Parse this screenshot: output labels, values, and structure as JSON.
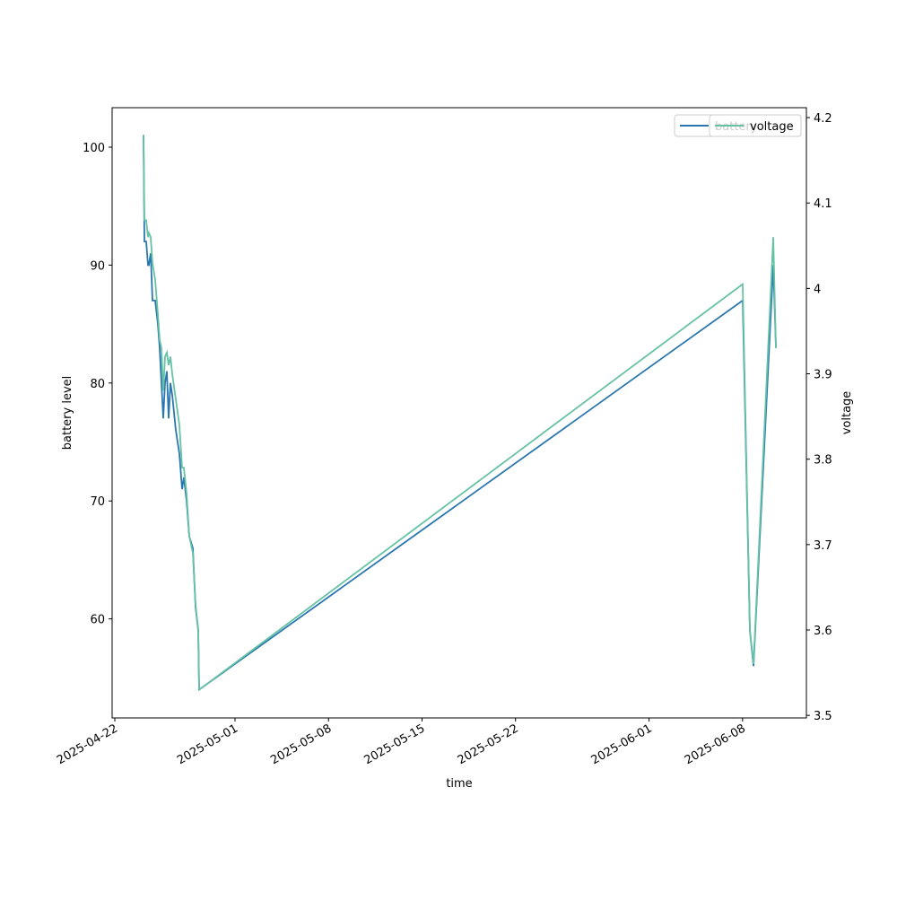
{
  "chart_data": {
    "type": "line",
    "xlabel": "time",
    "ylabel": "battery level",
    "y2label": "voltage",
    "x": [
      "2025-04-24T03:35",
      "2025-04-24T05:11",
      "2025-04-24T08:25",
      "2025-04-24T11:38",
      "2025-04-24T13:15",
      "2025-04-24T16:28",
      "2025-04-24T19:42",
      "2025-04-25T00:32",
      "2025-04-25T05:22",
      "2025-04-25T08:35",
      "2025-04-25T11:48",
      "2025-04-25T15:02",
      "2025-04-25T18:15",
      "2025-04-25T21:29",
      "2025-04-26T00:43",
      "2025-04-26T03:56",
      "2025-04-26T07:09",
      "2025-04-26T13:36",
      "2025-04-26T20:02",
      "2025-04-27T00:53",
      "2025-04-27T04:06",
      "2025-04-27T08:57",
      "2025-04-27T13:47",
      "2025-04-27T20:14",
      "2025-04-28T01:03",
      "2025-04-28T05:54",
      "2025-04-28T07:30",
      "2025-06-08T00:14",
      "2025-06-08T13:12",
      "2025-06-08T19:40",
      "2025-06-10T07:10",
      "2025-06-10T12:00"
    ],
    "series": [
      {
        "name": "battery",
        "color": "#2a77b0",
        "values": [
          101,
          92,
          92,
          90,
          90,
          91,
          87,
          87,
          85,
          83,
          80,
          77,
          80,
          81,
          77,
          80,
          79,
          76,
          74,
          71,
          72,
          70,
          67,
          66,
          61,
          59,
          54,
          87,
          59,
          56,
          90,
          83
        ]
      },
      {
        "name": "voltage",
        "color": "#66c2a5",
        "axis": "y2",
        "values": [
          4.18,
          4.08,
          4.08,
          4.06,
          4.065,
          4.06,
          4.03,
          4.01,
          3.97,
          3.94,
          3.93,
          3.88,
          3.92,
          3.925,
          3.91,
          3.92,
          3.9,
          3.87,
          3.84,
          3.79,
          3.79,
          3.76,
          3.71,
          3.69,
          3.63,
          3.6,
          3.53,
          4.005,
          3.6,
          3.56,
          4.06,
          3.93
        ]
      }
    ],
    "xlim": [
      "2025-04-21T19:10",
      "2025-06-12T18:43"
    ],
    "xticks": [
      "2025-04-22",
      "2025-05-01",
      "2025-05-08",
      "2025-05-15",
      "2025-05-22",
      "2025-06-01",
      "2025-06-08"
    ],
    "ylim": [
      51.6,
      103.35
    ],
    "yticks": [
      60,
      70,
      80,
      90,
      100
    ],
    "y2lim": [
      3.497,
      4.2116
    ],
    "y2ticks": [
      3.5,
      3.6,
      3.7,
      3.8,
      3.9,
      4.0,
      4.1,
      4.2
    ],
    "legend": "upper right"
  }
}
